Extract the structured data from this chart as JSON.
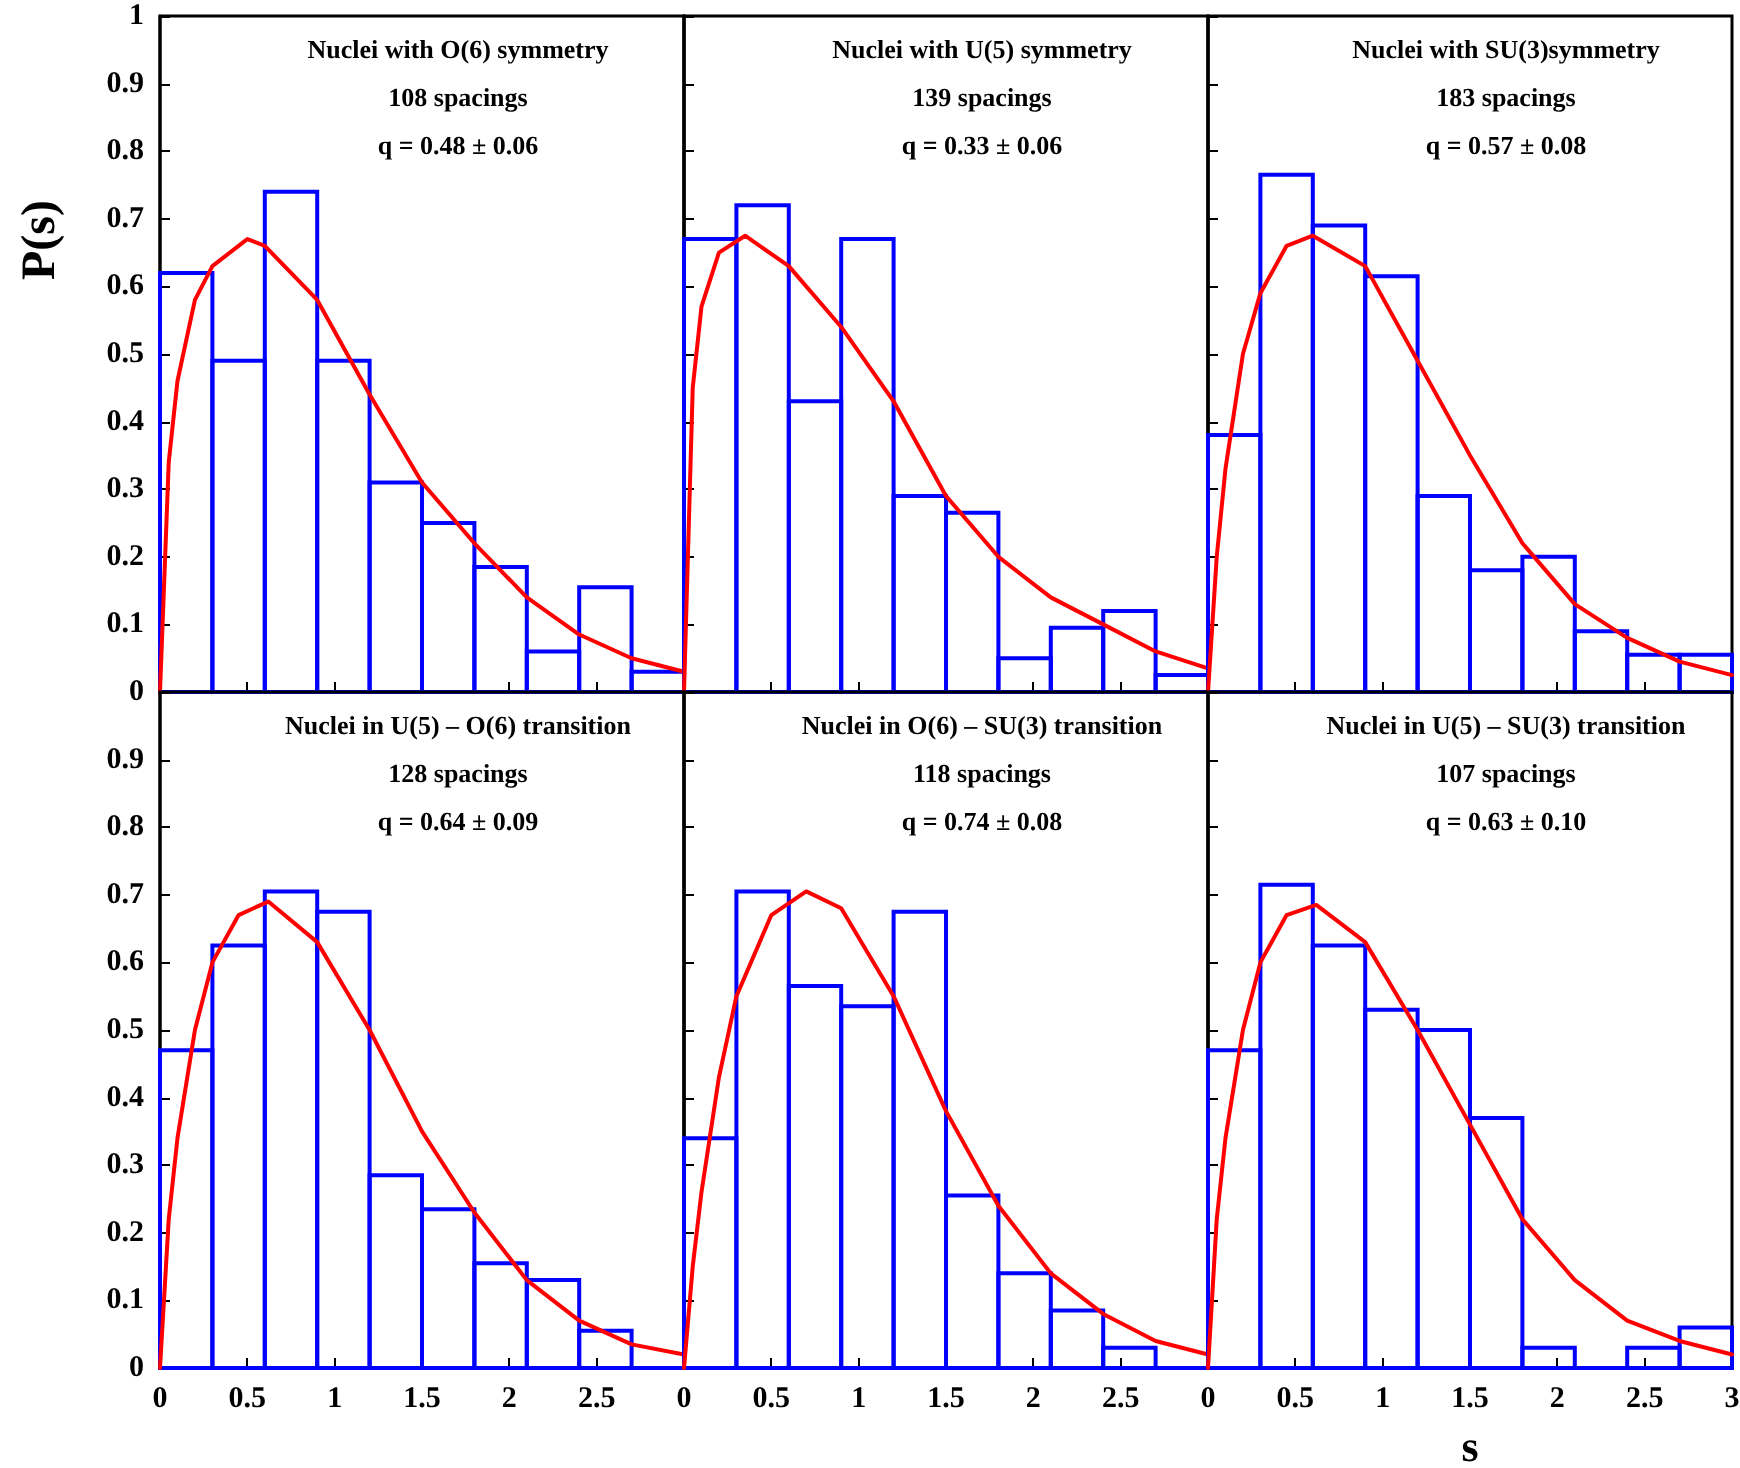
{
  "chart_data": [
    {
      "type": "histogram",
      "ylabel": "P(s)",
      "annotations": [
        "Nuclei with O(6) symmetry",
        "108 spacings",
        "q = 0.48 ± 0.06"
      ],
      "xlim": [
        0,
        3
      ],
      "ylim": [
        0,
        1
      ],
      "xticks": [
        0,
        0.5,
        1,
        1.5,
        2,
        2.5,
        3
      ],
      "yticks": [
        0,
        0.1,
        0.2,
        0.3,
        0.4,
        0.5,
        0.6,
        0.7,
        0.8,
        0.9,
        1
      ],
      "tick_labels": "y",
      "series": [
        {
          "color": "#0000ff",
          "bins": [
            0,
            0.3,
            0.6,
            0.9,
            1.2,
            1.5,
            1.8,
            2.1,
            2.4,
            2.7,
            3
          ],
          "values": [
            0.62,
            0.49,
            0.74,
            0.49,
            0.31,
            0.25,
            0.185,
            0.06,
            0.155,
            0.03
          ]
        },
        {
          "type": "line",
          "color": "#ff0000",
          "x": [
            0,
            0.05,
            0.1,
            0.2,
            0.3,
            0.5,
            0.6,
            0.9,
            1.2,
            1.5,
            1.8,
            2.1,
            2.4,
            2.7,
            3
          ],
          "values": [
            0,
            0.34,
            0.46,
            0.58,
            0.63,
            0.67,
            0.66,
            0.58,
            0.44,
            0.31,
            0.22,
            0.14,
            0.085,
            0.05,
            0.03
          ]
        }
      ]
    },
    {
      "type": "histogram",
      "annotations": [
        "Nuclei with U(5) symmetry",
        "139 spacings",
        "q = 0.33 ± 0.06"
      ],
      "xlim": [
        0,
        3
      ],
      "ylim": [
        0,
        1
      ],
      "xticks": [
        0,
        0.5,
        1,
        1.5,
        2,
        2.5,
        3
      ],
      "yticks": [
        0,
        0.1,
        0.2,
        0.3,
        0.4,
        0.5,
        0.6,
        0.7,
        0.8,
        0.9,
        1
      ],
      "tick_labels": false,
      "series": [
        {
          "color": "#0000ff",
          "bins": [
            0,
            0.3,
            0.6,
            0.9,
            1.2,
            1.5,
            1.8,
            2.1,
            2.4,
            2.7,
            3
          ],
          "values": [
            0.67,
            0.72,
            0.43,
            0.67,
            0.29,
            0.265,
            0.05,
            0.095,
            0.12,
            0.025
          ]
        },
        {
          "type": "line",
          "color": "#ff0000",
          "x": [
            0,
            0.05,
            0.1,
            0.2,
            0.35,
            0.6,
            0.9,
            1.2,
            1.5,
            1.8,
            2.1,
            2.4,
            2.7,
            3
          ],
          "values": [
            0,
            0.45,
            0.57,
            0.65,
            0.675,
            0.63,
            0.54,
            0.43,
            0.29,
            0.2,
            0.14,
            0.1,
            0.06,
            0.035
          ]
        }
      ]
    },
    {
      "type": "histogram",
      "annotations": [
        "Nuclei with SU(3)symmetry",
        "183 spacings",
        "q = 0.57 ± 0.08"
      ],
      "xlim": [
        0,
        3
      ],
      "ylim": [
        0,
        1
      ],
      "xticks": [
        0,
        0.5,
        1,
        1.5,
        2,
        2.5,
        3
      ],
      "yticks": [
        0,
        0.1,
        0.2,
        0.3,
        0.4,
        0.5,
        0.6,
        0.7,
        0.8,
        0.9,
        1
      ],
      "tick_labels": false,
      "series": [
        {
          "color": "#0000ff",
          "bins": [
            0,
            0.3,
            0.6,
            0.9,
            1.2,
            1.5,
            1.8,
            2.1,
            2.4,
            2.7,
            3
          ],
          "values": [
            0.38,
            0.765,
            0.69,
            0.615,
            0.29,
            0.18,
            0.2,
            0.09,
            0.055,
            0.055
          ]
        },
        {
          "type": "line",
          "color": "#ff0000",
          "x": [
            0,
            0.05,
            0.1,
            0.2,
            0.3,
            0.45,
            0.6,
            0.9,
            1.2,
            1.5,
            1.8,
            2.1,
            2.4,
            2.7,
            3
          ],
          "values": [
            0,
            0.2,
            0.33,
            0.5,
            0.59,
            0.66,
            0.675,
            0.63,
            0.49,
            0.35,
            0.22,
            0.13,
            0.08,
            0.045,
            0.025
          ]
        }
      ]
    },
    {
      "type": "histogram",
      "annotations": [
        "Nuclei in U(5) – O(6) transition",
        "128 spacings",
        "q = 0.64 ± 0.09"
      ],
      "xlim": [
        0,
        3
      ],
      "ylim": [
        0,
        1
      ],
      "xticks": [
        0,
        0.5,
        1,
        1.5,
        2,
        2.5,
        {
          "value": 3,
          "label": null
        }
      ],
      "yticks": [
        0,
        0.1,
        0.2,
        0.3,
        0.4,
        0.5,
        0.6,
        0.7,
        0.8,
        0.9,
        {
          "value": 1,
          "label": null
        }
      ],
      "series": [
        {
          "color": "#0000ff",
          "bins": [
            0,
            0.3,
            0.6,
            0.9,
            1.2,
            1.5,
            1.8,
            2.1,
            2.4,
            2.7,
            3
          ],
          "values": [
            0.47,
            0.625,
            0.705,
            0.675,
            0.285,
            0.235,
            0.155,
            0.13,
            0.055,
            0
          ]
        },
        {
          "type": "line",
          "color": "#ff0000",
          "x": [
            0,
            0.05,
            0.1,
            0.2,
            0.3,
            0.45,
            0.62,
            0.9,
            1.2,
            1.5,
            1.8,
            2.1,
            2.4,
            2.7,
            3
          ],
          "values": [
            0,
            0.22,
            0.34,
            0.5,
            0.6,
            0.67,
            0.69,
            0.63,
            0.5,
            0.35,
            0.23,
            0.13,
            0.07,
            0.035,
            0.02
          ]
        }
      ]
    },
    {
      "type": "histogram",
      "annotations": [
        "Nuclei in O(6) – SU(3) transition",
        "118 spacings",
        "q = 0.74 ± 0.08"
      ],
      "xlim": [
        0,
        3
      ],
      "ylim": [
        0,
        1
      ],
      "xticks": [
        0,
        0.5,
        1,
        1.5,
        2,
        2.5,
        {
          "value": 3,
          "label": null
        }
      ],
      "yticks": [
        0,
        0.1,
        0.2,
        0.3,
        0.4,
        0.5,
        0.6,
        0.7,
        0.8,
        0.9,
        1
      ],
      "tick_labels": "x",
      "series": [
        {
          "color": "#0000ff",
          "bins": [
            0,
            0.3,
            0.6,
            0.9,
            1.2,
            1.5,
            1.8,
            2.1,
            2.4,
            2.7,
            3
          ],
          "values": [
            0.34,
            0.705,
            0.565,
            0.535,
            0.675,
            0.255,
            0.14,
            0.085,
            0.03,
            0
          ]
        },
        {
          "type": "line",
          "color": "#ff0000",
          "x": [
            0,
            0.05,
            0.1,
            0.2,
            0.3,
            0.5,
            0.7,
            0.9,
            1.2,
            1.5,
            1.8,
            2.1,
            2.4,
            2.7,
            3
          ],
          "values": [
            0,
            0.15,
            0.26,
            0.43,
            0.55,
            0.67,
            0.705,
            0.68,
            0.55,
            0.38,
            0.24,
            0.14,
            0.08,
            0.04,
            0.02
          ]
        }
      ]
    },
    {
      "type": "histogram",
      "xlabel": "s",
      "annotations": [
        "Nuclei in U(5) – SU(3) transition",
        "107 spacings",
        "q = 0.63 ± 0.10"
      ],
      "xlim": [
        0,
        3
      ],
      "ylim": [
        0,
        1
      ],
      "xticks": [
        0,
        0.5,
        1,
        1.5,
        2,
        2.5,
        3
      ],
      "yticks": [
        0,
        0.1,
        0.2,
        0.3,
        0.4,
        0.5,
        0.6,
        0.7,
        0.8,
        0.9,
        1
      ],
      "tick_labels": "x",
      "series": [
        {
          "color": "#0000ff",
          "bins": [
            0,
            0.3,
            0.6,
            0.9,
            1.2,
            1.5,
            1.8,
            2.1,
            2.4,
            2.7,
            3
          ],
          "values": [
            0.47,
            0.715,
            0.625,
            0.53,
            0.5,
            0.37,
            0.03,
            0,
            0.03,
            0.06
          ]
        },
        {
          "type": "line",
          "color": "#ff0000",
          "x": [
            0,
            0.05,
            0.1,
            0.2,
            0.3,
            0.45,
            0.62,
            0.9,
            1.2,
            1.5,
            1.8,
            2.1,
            2.4,
            2.7,
            3
          ],
          "values": [
            0,
            0.22,
            0.34,
            0.5,
            0.6,
            0.67,
            0.685,
            0.63,
            0.5,
            0.36,
            0.22,
            0.13,
            0.07,
            0.04,
            0.02
          ]
        }
      ]
    }
  ]
}
